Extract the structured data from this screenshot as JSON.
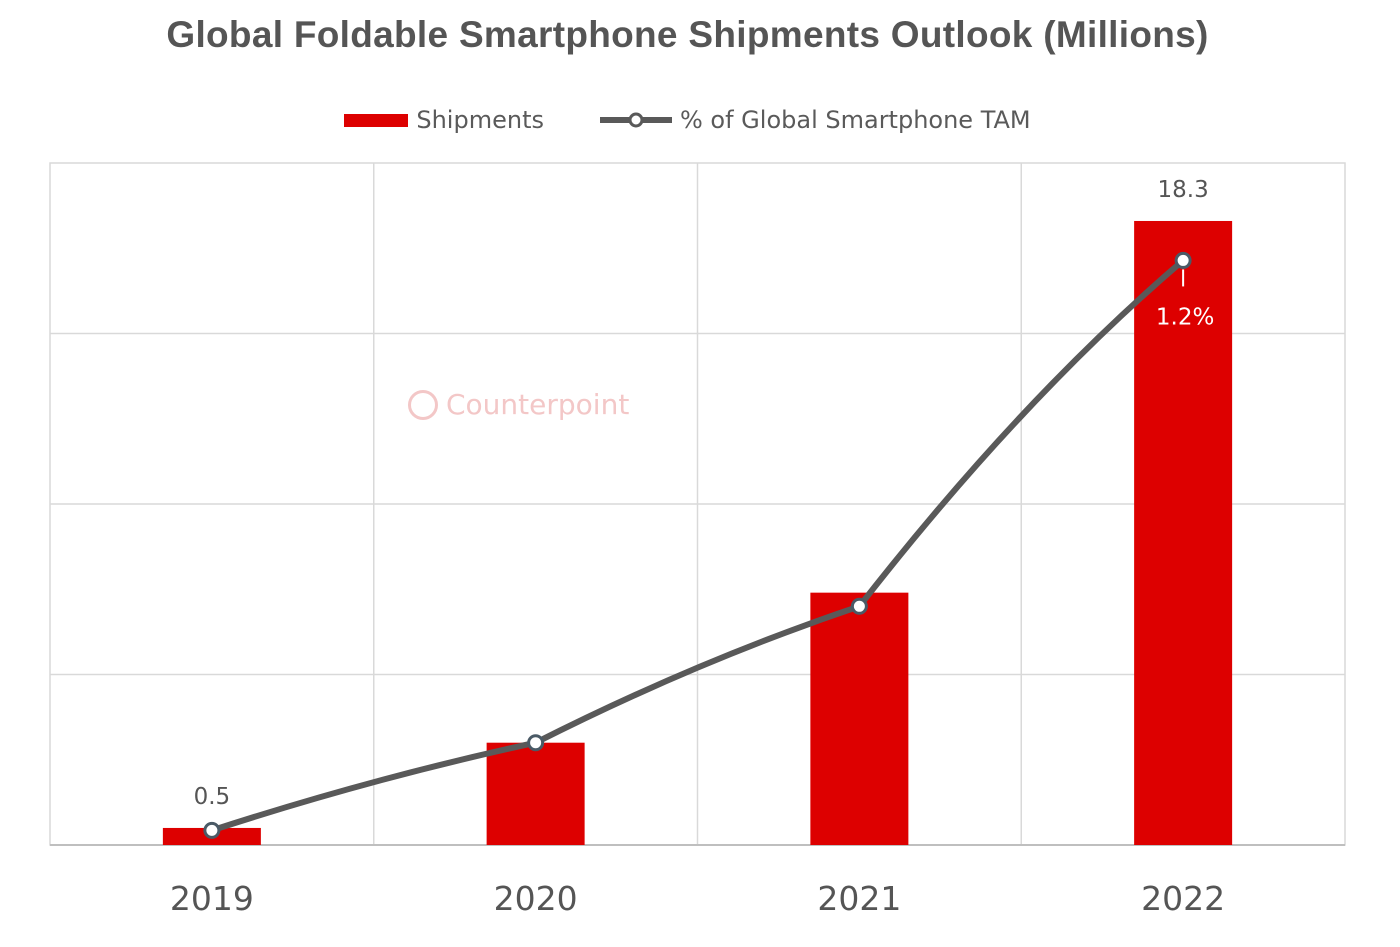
{
  "chart_data": {
    "type": "bar",
    "title": "Global Foldable Smartphone Shipments Outlook (Millions)",
    "categories": [
      "2019",
      "2020",
      "2021",
      "2022"
    ],
    "series": [
      {
        "name": "Shipments",
        "kind": "bar",
        "color": "#dd0000",
        "values": [
          0.5,
          3.0,
          7.4,
          18.3
        ],
        "data_labels": [
          "0.5",
          "",
          "",
          "18.3"
        ]
      },
      {
        "name": "% of Global Smartphone TAM",
        "kind": "line",
        "color": "#595959",
        "values": [
          0.03,
          0.21,
          0.49,
          1.2
        ],
        "data_labels": [
          "",
          "",
          "",
          "1.2%"
        ]
      }
    ],
    "ylim_bar": [
      0,
      20
    ],
    "ylim_line": [
      0,
      1.4
    ],
    "grid": true,
    "legend_position": "top-center",
    "watermark": "Counterpoint"
  }
}
